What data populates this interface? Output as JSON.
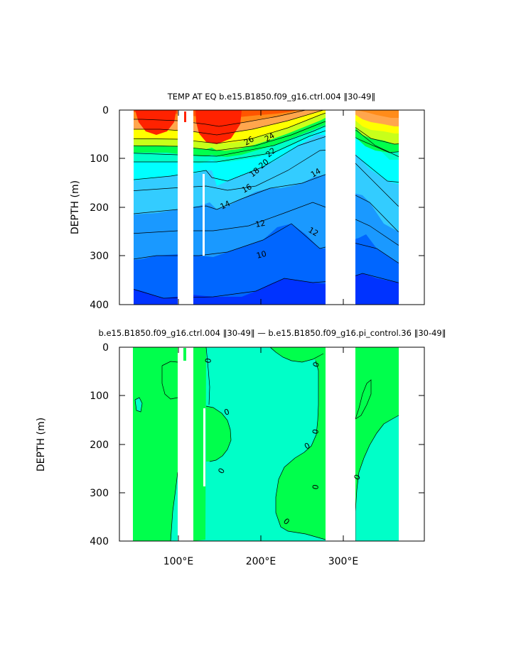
{
  "colors": {
    "red": "#ff2200",
    "orange_red": "#ff5500",
    "orange": "#ff8c1a",
    "light_orange": "#ffa64d",
    "yellow": "#ffff00",
    "yellow_green": "#c8ff1a",
    "green": "#00ff4c",
    "aqua_green": "#00ffc8",
    "cyan": "#00ffff",
    "light_blue": "#33ccff",
    "blue1": "#1a99ff",
    "blue2": "#0066ff",
    "blue3": "#0033ff",
    "deep_blue": "#0000ee",
    "purple": "#8800ff"
  },
  "chart_data": [
    {
      "type": "contour",
      "title": "TEMP AT EQ b.e15.B1850.f09_g16.ctrl.004 ‖30-49‖",
      "xlabel": "",
      "ylabel": "DEPTH (m)",
      "xlim": [
        30,
        390
      ],
      "ylim": [
        400,
        0
      ],
      "x_ticks": [
        100,
        200,
        300
      ],
      "x_tick_labels": [
        "",
        "",
        ""
      ],
      "y_ticks": [
        0,
        100,
        200,
        300,
        400
      ],
      "y_tick_labels": [
        "0",
        "100",
        "200",
        "300",
        "400"
      ],
      "land_gaps_lon": [
        [
          100,
          118
        ],
        [
          276,
          313
        ]
      ],
      "contour_labels": [
        {
          "text": "26",
          "lon": 165,
          "depth": 70
        },
        {
          "text": "24",
          "lon": 190,
          "depth": 62
        },
        {
          "text": "22",
          "lon": 195,
          "depth": 92
        },
        {
          "text": "20",
          "lon": 187,
          "depth": 112
        },
        {
          "text": "18",
          "lon": 180,
          "depth": 135
        },
        {
          "text": "16",
          "lon": 170,
          "depth": 165
        },
        {
          "text": "14",
          "lon": 150,
          "depth": 197
        },
        {
          "text": "14",
          "lon": 238,
          "depth": 135
        },
        {
          "text": "12",
          "lon": 153,
          "depth": 233
        },
        {
          "text": "12",
          "lon": 225,
          "depth": 245
        },
        {
          "text": "10",
          "lon": 161,
          "depth": 300
        }
      ]
    },
    {
      "type": "contour",
      "title": "b.e15.B1850.f09_g16.ctrl.004 ‖30-49‖ — b.e15.B1850.f09_g16.pi_control.36 ‖30-49‖",
      "xlabel": "",
      "ylabel": "DEPTH (m)",
      "xlim": [
        30,
        390
      ],
      "ylim": [
        400,
        0
      ],
      "x_ticks": [
        100,
        200,
        300
      ],
      "x_tick_labels": [
        "100°E",
        "200°E",
        "300°E"
      ],
      "y_ticks": [
        0,
        100,
        200,
        300,
        400
      ],
      "y_tick_labels": [
        "0",
        "100",
        "200",
        "300",
        "400"
      ],
      "land_gaps_lon": [
        [
          100,
          118
        ],
        [
          276,
          313
        ]
      ],
      "contour_labels": [
        {
          "text": "0",
          "lon": 125,
          "depth": 33
        },
        {
          "text": "0",
          "lon": 151,
          "depth": 140
        },
        {
          "text": "0",
          "lon": 227,
          "depth": 38
        },
        {
          "text": "0",
          "lon": 266,
          "depth": 170
        },
        {
          "text": "0",
          "lon": 252,
          "depth": 205
        },
        {
          "text": "0",
          "lon": 113,
          "depth": 265
        },
        {
          "text": "0",
          "lon": 271,
          "depth": 292
        },
        {
          "text": "0",
          "lon": 222,
          "depth": 358
        },
        {
          "text": "0",
          "lon": 322,
          "depth": 280
        }
      ]
    }
  ]
}
